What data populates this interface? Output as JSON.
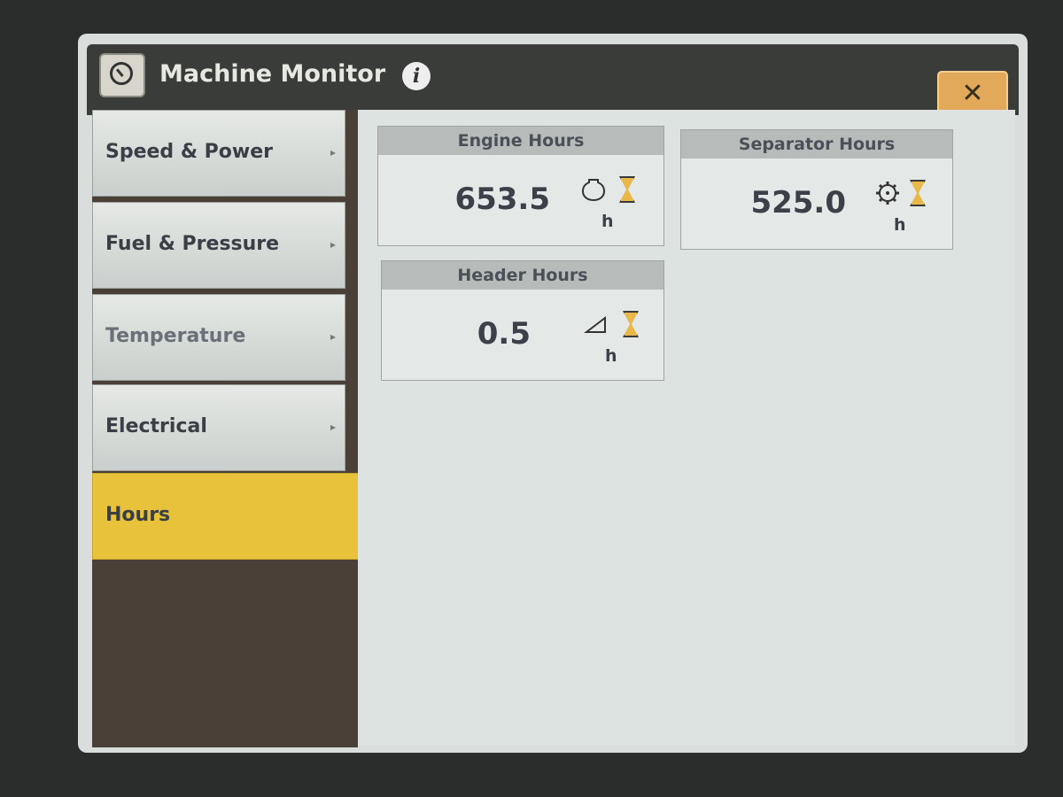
{
  "header": {
    "title": "Machine Monitor",
    "info_icon": "info-icon",
    "close_label": "✕"
  },
  "sidebar": {
    "items": [
      {
        "label": "Speed & Power",
        "arrow": "▸",
        "active": false
      },
      {
        "label": "Fuel & Pressure",
        "arrow": "▸",
        "active": false
      },
      {
        "label": "Temperature",
        "arrow": "▸",
        "active": false
      },
      {
        "label": "Electrical",
        "arrow": "▸",
        "active": false
      },
      {
        "label": "Hours",
        "arrow": "",
        "active": true
      }
    ]
  },
  "cards": [
    {
      "title": "Engine Hours",
      "value": "653.5",
      "unit": "h",
      "icon": "engine-icon"
    },
    {
      "title": "Separator Hours",
      "value": "525.0",
      "unit": "h",
      "icon": "separator-gear-icon"
    },
    {
      "title": "Header Hours",
      "value": "0.5",
      "unit": "h",
      "icon": "header-icon"
    }
  ],
  "colors": {
    "accent": "#e8c23a",
    "close": "#e2a95a",
    "titlebar": "#3a3c3a"
  }
}
